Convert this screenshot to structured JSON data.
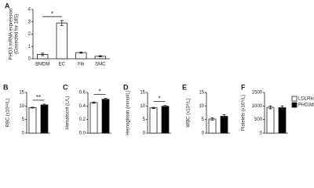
{
  "legend": [
    {
      "name": "LDLRko",
      "color": "#ffffff"
    },
    {
      "name": "PHD3dko",
      "color": "#000000"
    }
  ],
  "chart_data": [
    {
      "type": "bar",
      "panel_label": "A",
      "y_label": "PHD3 mRNA expression",
      "y_label_2": "(Corrected for 18S)",
      "categories": [
        "BMDM",
        "EC",
        "Fib",
        "SMC"
      ],
      "values": [
        0.35,
        2.9,
        0.5,
        0.2
      ],
      "errors": [
        0.1,
        0.2,
        0.05,
        0.05
      ],
      "color": "#ffffff",
      "ylim": [
        0,
        4
      ],
      "yticks": [
        0,
        1,
        2,
        3,
        4
      ],
      "annotations": [
        {
          "text": "*",
          "from": 0,
          "to": 1
        }
      ]
    },
    {
      "type": "bar",
      "panel_label": "B",
      "y_label": "RBC (x10¹²/L)",
      "values": [
        9.4,
        10.4
      ],
      "errors": [
        0.2,
        0.3
      ],
      "ylim": [
        0,
        15
      ],
      "yticks": [
        0,
        5,
        10,
        15
      ],
      "annotations": [
        {
          "text": "**",
          "from": 0,
          "to": 1
        }
      ]
    },
    {
      "type": "bar",
      "panel_label": "C",
      "y_label": "Hematocrit (L/L)",
      "values": [
        0.45,
        0.5
      ],
      "errors": [
        0.01,
        0.015
      ],
      "ylim": [
        0,
        0.6
      ],
      "yticks": [
        {
          "value": 0,
          "label": "0.0"
        },
        0.2,
        0.4,
        0.6
      ],
      "annotations": [
        {
          "text": "*",
          "from": 0,
          "to": 1
        }
      ]
    },
    {
      "type": "bar",
      "panel_label": "D",
      "y_label": "Hemoglobin (mmol/L)",
      "values": [
        9.3,
        9.9
      ],
      "errors": [
        0.2,
        0.3
      ],
      "ylim": [
        0,
        15
      ],
      "yticks": [
        0,
        5,
        10,
        15
      ],
      "annotations": [
        {
          "text": "*",
          "from": 0,
          "to": 1
        }
      ]
    },
    {
      "type": "bar",
      "panel_label": "E",
      "y_label": "WBC (x10⁹/L)",
      "values": [
        5.2,
        6.2
      ],
      "errors": [
        0.4,
        0.6
      ],
      "ylim": [
        0,
        15
      ],
      "yticks": [
        0,
        5,
        10,
        15
      ]
    },
    {
      "type": "bar",
      "panel_label": "F",
      "y_label": "Platelets (x10⁹/L)",
      "values": [
        950,
        940
      ],
      "errors": [
        50,
        60
      ],
      "ylim": [
        0,
        1500
      ],
      "yticks": [
        0,
        500,
        {
          "value": 1000,
          "label": "1000"
        },
        {
          "value": 1500,
          "label": "1500"
        }
      ]
    }
  ]
}
